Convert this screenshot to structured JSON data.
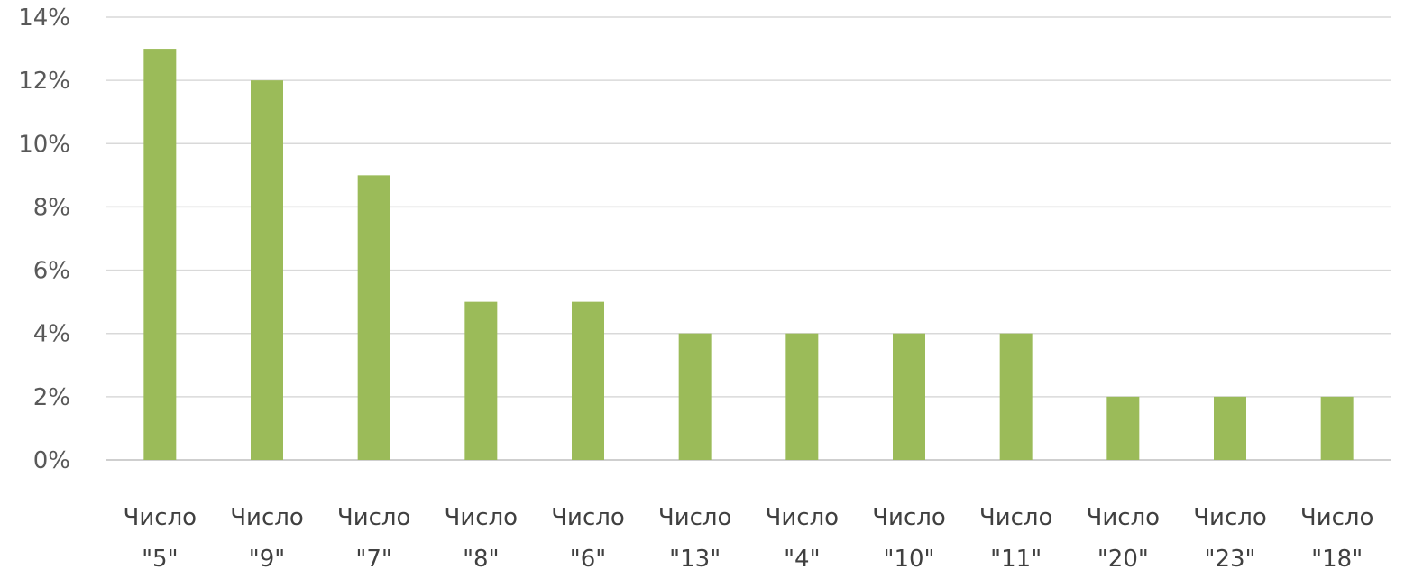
{
  "chart_data": {
    "type": "bar",
    "title": "",
    "xlabel": "",
    "ylabel": "",
    "ylim": [
      0,
      14
    ],
    "yticks": [
      0,
      2,
      4,
      6,
      8,
      10,
      12,
      14
    ],
    "ytick_labels": [
      "0%",
      "2%",
      "4%",
      "6%",
      "8%",
      "10%",
      "12%",
      "14%"
    ],
    "grid": true,
    "legend": "none",
    "bar_color": "#9bbb59",
    "categories": [
      [
        "Число",
        "\"5\""
      ],
      [
        "Число",
        "\"9\""
      ],
      [
        "Число",
        "\"7\""
      ],
      [
        "Число",
        "\"8\""
      ],
      [
        "Число",
        "\"6\""
      ],
      [
        "Число",
        "\"13\""
      ],
      [
        "Число",
        "\"4\""
      ],
      [
        "Число",
        "\"10\""
      ],
      [
        "Число",
        "\"11\""
      ],
      [
        "Число",
        "\"20\""
      ],
      [
        "Число",
        "\"23\""
      ],
      [
        "Число",
        "\"18\""
      ]
    ],
    "values": [
      13,
      12,
      9,
      5,
      5,
      4,
      4,
      4,
      4,
      2,
      2,
      2
    ]
  }
}
